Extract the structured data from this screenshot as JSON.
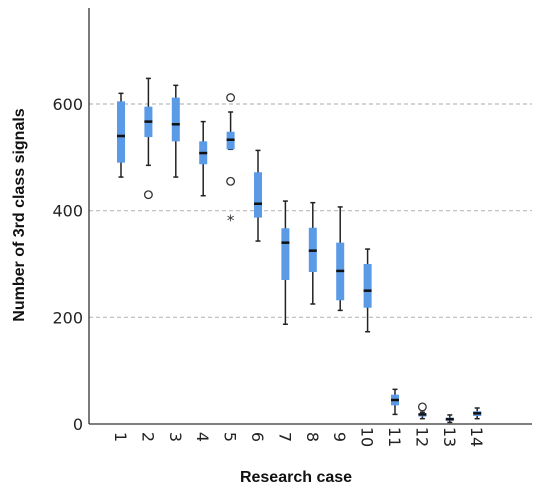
{
  "chart_data": {
    "type": "boxplot",
    "xlabel": "Research case",
    "ylabel": "Number of 3rd class signals",
    "ylim": [
      0,
      780
    ],
    "yticks": [
      0,
      200,
      400,
      600
    ],
    "grid": "horizontal dashed",
    "categories": [
      "1",
      "2",
      "3",
      "4",
      "5",
      "6",
      "7",
      "8",
      "9",
      "10",
      "11",
      "12",
      "13",
      "14"
    ],
    "boxes": [
      {
        "case": "1",
        "whisker_low": 463,
        "q1": 490,
        "median": 540,
        "q3": 605,
        "whisker_high": 620,
        "outliers": [],
        "extremes": []
      },
      {
        "case": "2",
        "whisker_low": 485,
        "q1": 538,
        "median": 567,
        "q3": 595,
        "whisker_high": 648,
        "outliers": [
          430
        ],
        "extremes": []
      },
      {
        "case": "3",
        "whisker_low": 463,
        "q1": 530,
        "median": 562,
        "q3": 612,
        "whisker_high": 635,
        "outliers": [],
        "extremes": []
      },
      {
        "case": "4",
        "whisker_low": 428,
        "q1": 487,
        "median": 508,
        "q3": 530,
        "whisker_high": 567,
        "outliers": [],
        "extremes": []
      },
      {
        "case": "5",
        "whisker_low": 515,
        "q1": 515,
        "median": 533,
        "q3": 548,
        "whisker_high": 585,
        "outliers": [
          612,
          455
        ],
        "extremes": [
          385
        ]
      },
      {
        "case": "6",
        "whisker_low": 343,
        "q1": 387,
        "median": 413,
        "q3": 472,
        "whisker_high": 513,
        "outliers": [],
        "extremes": []
      },
      {
        "case": "7",
        "whisker_low": 187,
        "q1": 270,
        "median": 340,
        "q3": 367,
        "whisker_high": 418,
        "outliers": [],
        "extremes": []
      },
      {
        "case": "8",
        "whisker_low": 225,
        "q1": 285,
        "median": 325,
        "q3": 368,
        "whisker_high": 415,
        "outliers": [],
        "extremes": []
      },
      {
        "case": "9",
        "whisker_low": 213,
        "q1": 232,
        "median": 287,
        "q3": 340,
        "whisker_high": 407,
        "outliers": [],
        "extremes": []
      },
      {
        "case": "10",
        "whisker_low": 173,
        "q1": 218,
        "median": 250,
        "q3": 300,
        "whisker_high": 328,
        "outliers": [],
        "extremes": []
      },
      {
        "case": "11",
        "whisker_low": 18,
        "q1": 35,
        "median": 45,
        "q3": 55,
        "whisker_high": 65,
        "outliers": [],
        "extremes": []
      },
      {
        "case": "12",
        "whisker_low": 10,
        "q1": 14,
        "median": 18,
        "q3": 20,
        "whisker_high": 22,
        "outliers": [
          32
        ],
        "extremes": []
      },
      {
        "case": "13",
        "whisker_low": 3,
        "q1": 6,
        "median": 9,
        "q3": 12,
        "whisker_high": 17,
        "outliers": [],
        "extremes": []
      },
      {
        "case": "14",
        "whisker_low": 10,
        "q1": 15,
        "median": 20,
        "q3": 24,
        "whisker_high": 30,
        "outliers": [],
        "extremes": []
      }
    ],
    "colors": {
      "box": "#5b9ae6",
      "median": "#111111",
      "whisker": "#222222",
      "grid": "#bbbbbb",
      "axis": "#333333"
    }
  }
}
